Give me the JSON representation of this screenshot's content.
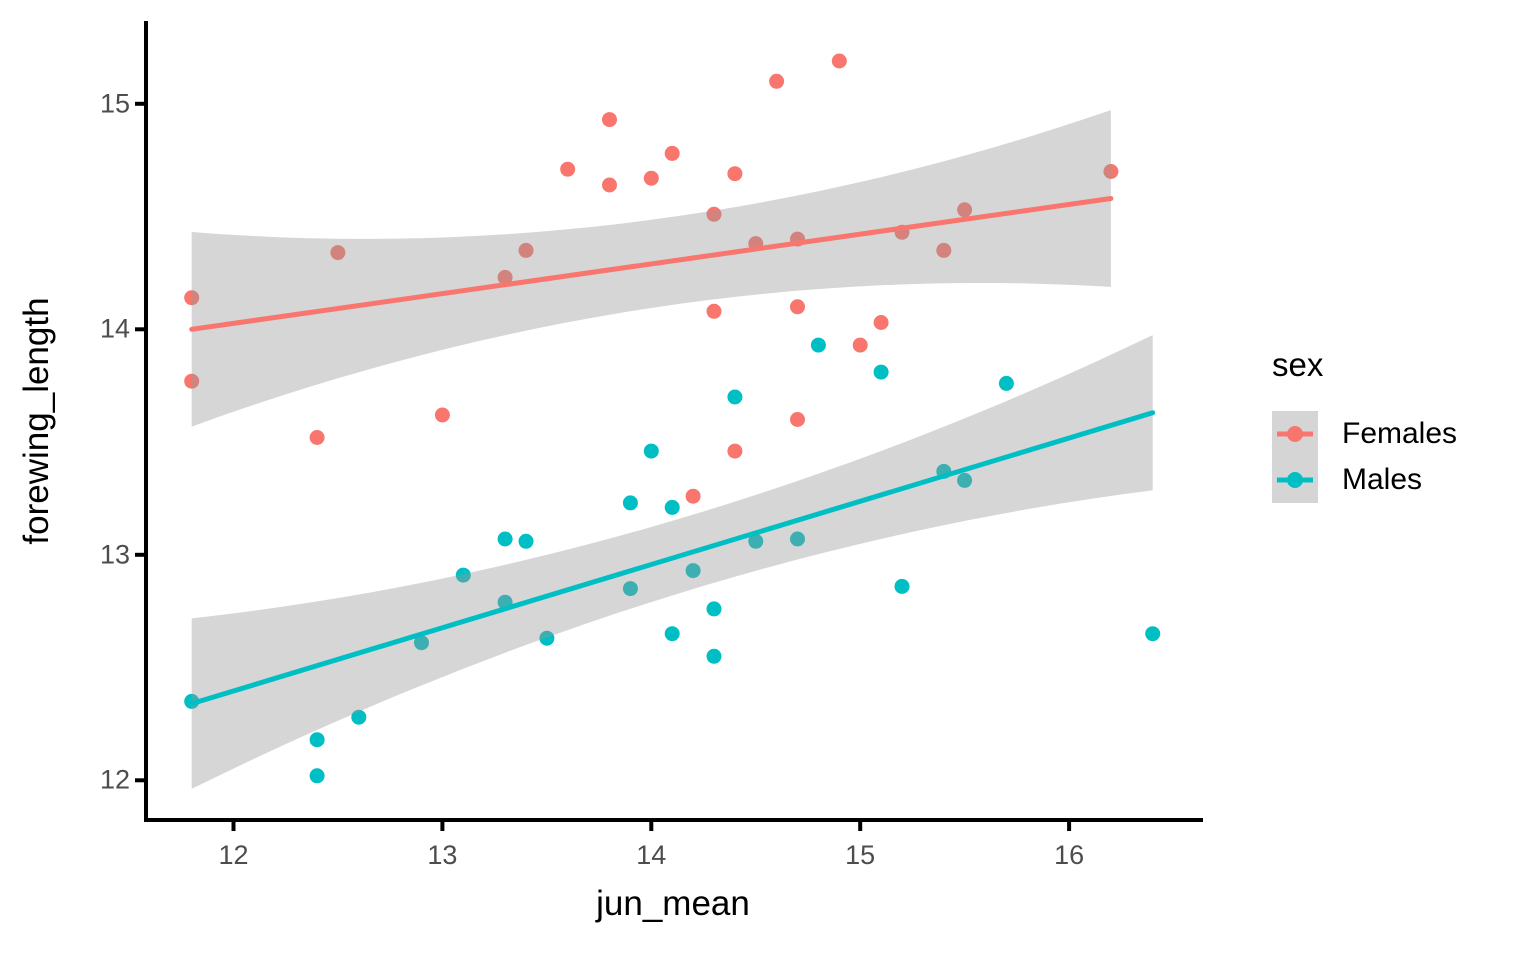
{
  "chart_data": {
    "type": "scatter",
    "title": "",
    "xlabel": "jun_mean",
    "ylabel": "forewing_length",
    "x_ticks": [
      12,
      13,
      14,
      15,
      16
    ],
    "y_ticks": [
      12,
      13,
      14,
      15
    ],
    "xlim": [
      11.58,
      16.63
    ],
    "ylim": [
      11.82,
      15.36
    ],
    "grid": "off",
    "background": "#ffffff",
    "axis_color": "#000000",
    "tick_label_color": "#4d4d4d",
    "band_fill": "#999999",
    "band_opacity": 0.4,
    "legend": {
      "title": "sex",
      "position": "right",
      "entries": [
        {
          "label": "Females",
          "color": "#F8766D"
        },
        {
          "label": "Males",
          "color": "#00BFC4"
        }
      ]
    },
    "series": [
      {
        "name": "Females",
        "color": "#F8766D",
        "points": [
          [
            11.8,
            14.14
          ],
          [
            11.8,
            13.77
          ],
          [
            12.5,
            14.34
          ],
          [
            12.4,
            13.52
          ],
          [
            13.0,
            13.62
          ],
          [
            13.3,
            14.23
          ],
          [
            13.4,
            14.35
          ],
          [
            13.6,
            14.71
          ],
          [
            13.8,
            14.64
          ],
          [
            13.8,
            14.93
          ],
          [
            14.0,
            14.67
          ],
          [
            14.1,
            14.78
          ],
          [
            14.3,
            14.51
          ],
          [
            14.4,
            14.69
          ],
          [
            14.5,
            14.38
          ],
          [
            14.7,
            14.4
          ],
          [
            14.6,
            15.1
          ],
          [
            14.9,
            15.19
          ],
          [
            14.3,
            14.08
          ],
          [
            14.7,
            14.1
          ],
          [
            14.7,
            13.6
          ],
          [
            14.4,
            13.46
          ],
          [
            14.2,
            13.26
          ],
          [
            15.0,
            13.93
          ],
          [
            15.1,
            14.03
          ],
          [
            15.2,
            14.43
          ],
          [
            15.4,
            14.35
          ],
          [
            15.5,
            14.53
          ],
          [
            16.2,
            14.7
          ]
        ],
        "regression": {
          "x1": 11.8,
          "y1": 14.0,
          "x2": 16.2,
          "y2": 14.58
        },
        "band": {
          "x_center": 14.1,
          "halfwidth_min": 0.195,
          "flare": 0.0447
        }
      },
      {
        "name": "Males",
        "color": "#00BFC4",
        "points": [
          [
            11.8,
            12.35
          ],
          [
            12.4,
            12.02
          ],
          [
            12.4,
            12.18
          ],
          [
            12.6,
            12.28
          ],
          [
            12.9,
            12.61
          ],
          [
            13.1,
            12.91
          ],
          [
            13.3,
            12.79
          ],
          [
            13.3,
            13.07
          ],
          [
            13.4,
            13.06
          ],
          [
            13.5,
            12.63
          ],
          [
            13.9,
            12.85
          ],
          [
            13.9,
            13.23
          ],
          [
            14.0,
            13.46
          ],
          [
            14.1,
            12.65
          ],
          [
            14.1,
            13.21
          ],
          [
            14.2,
            12.93
          ],
          [
            14.3,
            12.55
          ],
          [
            14.3,
            12.76
          ],
          [
            14.4,
            13.7
          ],
          [
            14.5,
            13.06
          ],
          [
            14.7,
            13.07
          ],
          [
            14.8,
            13.93
          ],
          [
            15.1,
            13.81
          ],
          [
            15.2,
            12.86
          ],
          [
            15.4,
            13.37
          ],
          [
            15.5,
            13.33
          ],
          [
            15.7,
            13.76
          ],
          [
            16.4,
            12.65
          ]
        ],
        "regression": {
          "x1": 11.8,
          "y1": 12.34,
          "x2": 16.4,
          "y2": 13.63
        },
        "band": {
          "x_center": 14.2,
          "halfwidth_min": 0.165,
          "flare": 0.037
        }
      }
    ]
  }
}
